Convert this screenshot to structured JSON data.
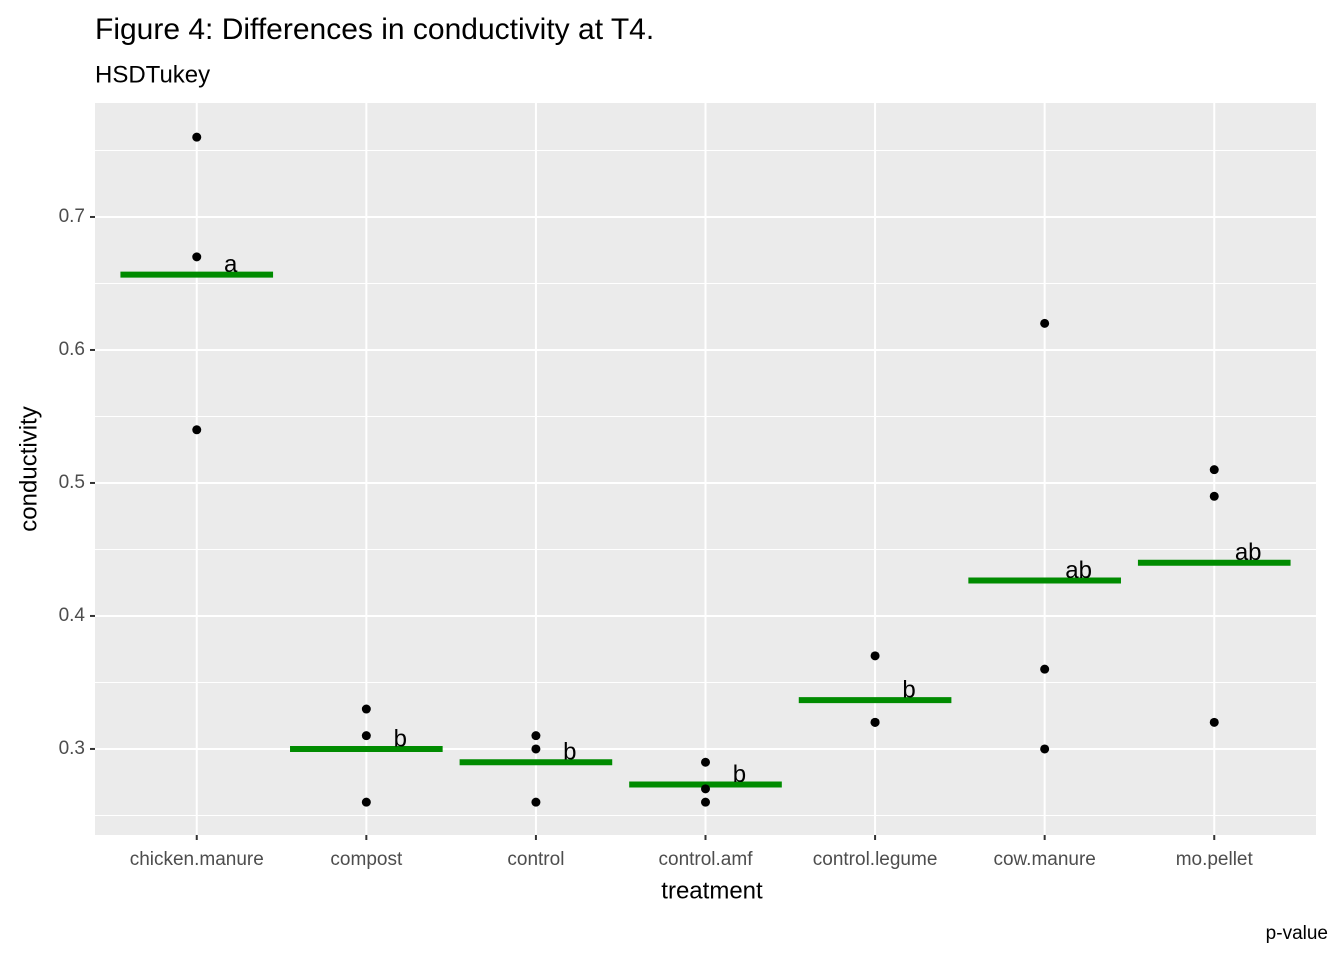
{
  "chart_data": {
    "type": "strip",
    "title": "Figure 4: Differences in conductivity at T4.",
    "subtitle": "HSDTukey",
    "caption": "p-value",
    "x_label": "treatment",
    "y_label": "conductivity",
    "categories": [
      "chicken.manure",
      "compost",
      "control",
      "control.amf",
      "control.legume",
      "cow.manure",
      "mo.pellet"
    ],
    "points": [
      [
        0.76,
        0.67,
        0.54
      ],
      [
        0.33,
        0.31,
        0.26
      ],
      [
        0.31,
        0.3,
        0.26
      ],
      [
        0.29,
        0.27,
        0.26
      ],
      [
        0.37,
        0.32,
        0.32
      ],
      [
        0.62,
        0.36,
        0.3
      ],
      [
        0.51,
        0.49,
        0.32
      ]
    ],
    "point_color": "#000000",
    "means": [
      0.6567,
      0.3,
      0.29,
      0.2733,
      0.3367,
      0.4267,
      0.44
    ],
    "mean_color": "#008b00",
    "letters": [
      "a",
      "b",
      "b",
      "b",
      "b",
      "ab",
      "ab"
    ],
    "ylim": [
      0.2353,
      0.7857
    ],
    "yticks": [
      0.3,
      0.4,
      0.5,
      0.6,
      0.7
    ],
    "minor_yticks": [
      0.25,
      0.35,
      0.45,
      0.55,
      0.65,
      0.75
    ],
    "grid": true
  }
}
